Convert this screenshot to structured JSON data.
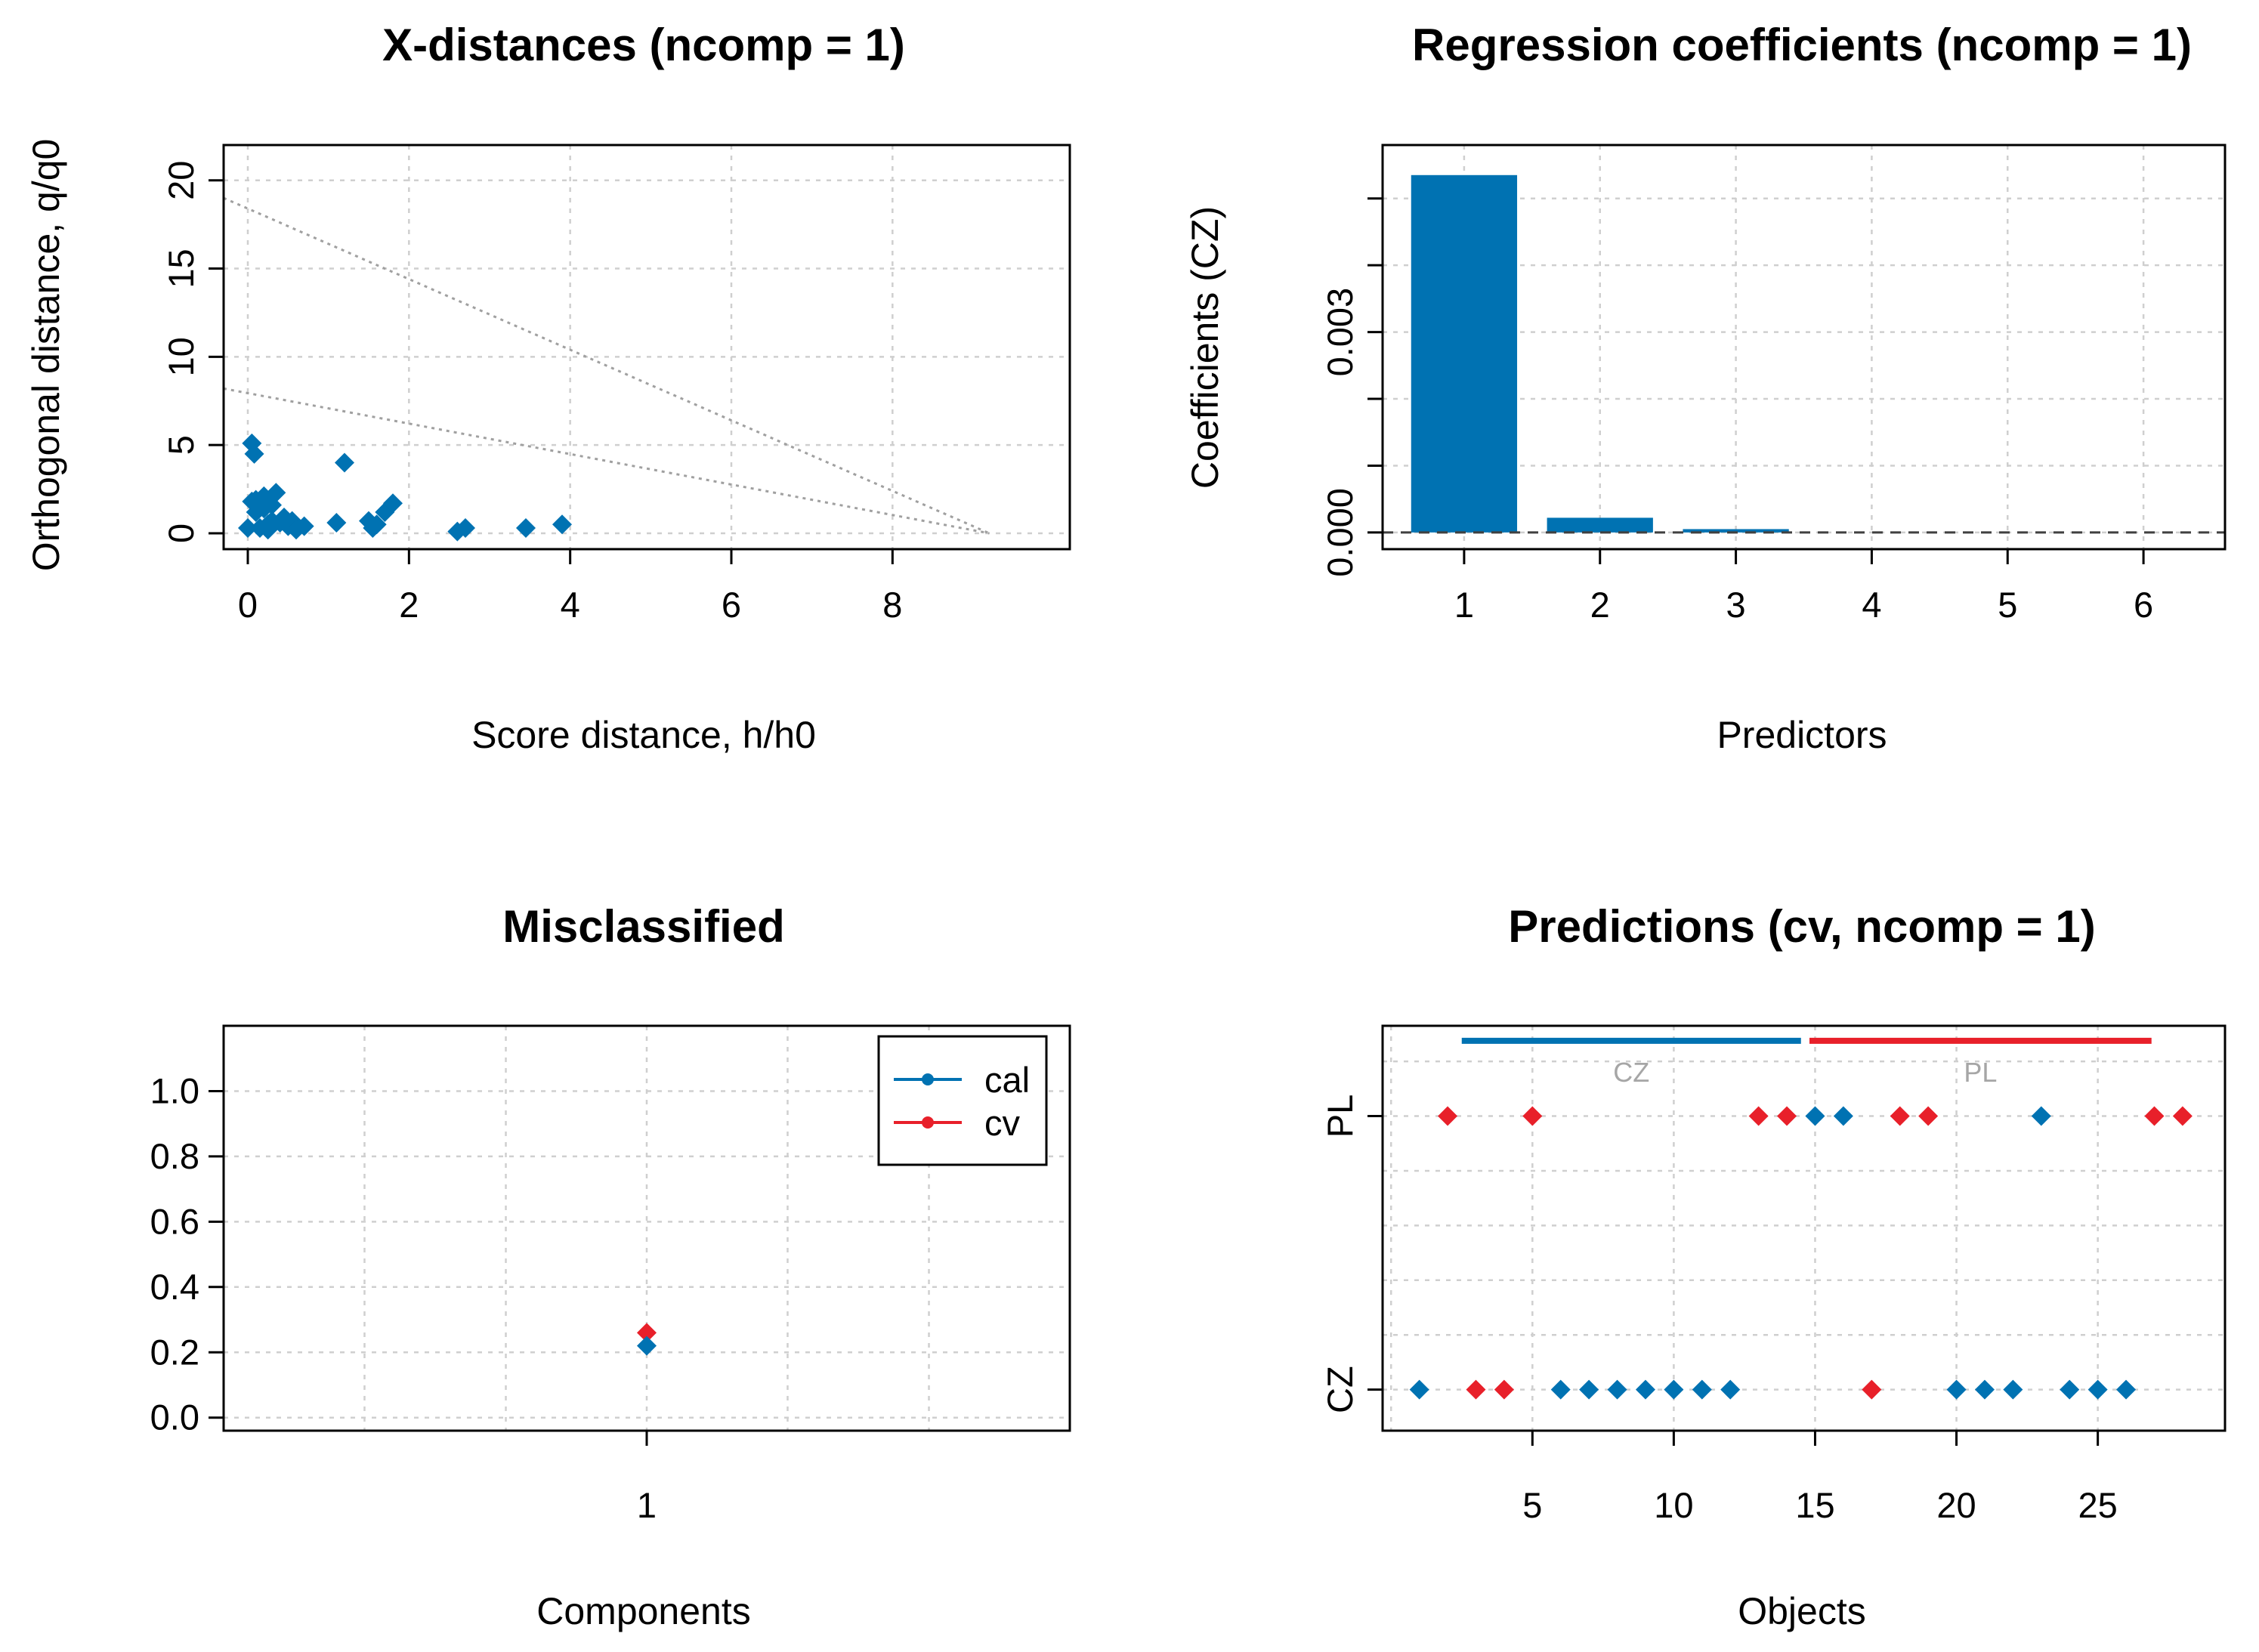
{
  "colors": {
    "cal": "#0072b2",
    "cv": "#e8202a",
    "grid": "#cfcfcf",
    "limit": "#a0a0a0"
  },
  "chart_data": [
    {
      "type": "scatter",
      "title": "X-distances (ncomp = 1)",
      "xlabel": "Score distance, h/h0",
      "ylabel": "Orthogonal distance, q/q0",
      "xlim": [
        -0.3,
        10.2
      ],
      "ylim": [
        -0.9,
        22
      ],
      "xticks": [
        0,
        2,
        4,
        6,
        8
      ],
      "yticks": [
        0,
        5,
        10,
        15,
        20
      ],
      "grid": true,
      "limit_lines": [
        {
          "x": [
            -0.3,
            9.2
          ],
          "y": [
            8.2,
            0
          ]
        },
        {
          "x": [
            -0.3,
            9.2
          ],
          "y": [
            19.0,
            0
          ]
        }
      ],
      "points": {
        "x": [
          0.05,
          0.08,
          0.1,
          0.15,
          0.2,
          0.25,
          0.3,
          0.35,
          0.4,
          0.45,
          0.5,
          0.55,
          0.6,
          0.7,
          0.0,
          0.05,
          0.1,
          0.2,
          0.25,
          1.1,
          1.2,
          1.5,
          1.55,
          1.6,
          1.7,
          1.8,
          2.6,
          2.7,
          3.45,
          3.9,
          0.3
        ],
        "y": [
          5.1,
          4.5,
          1.9,
          0.3,
          2.1,
          0.5,
          1.6,
          2.3,
          0.6,
          0.9,
          0.4,
          0.7,
          0.2,
          0.4,
          0.3,
          1.8,
          1.2,
          1.4,
          0.2,
          0.6,
          4.0,
          0.7,
          0.3,
          0.5,
          1.2,
          1.7,
          0.1,
          0.3,
          0.3,
          0.5,
          0.7
        ]
      }
    },
    {
      "type": "bar",
      "title": "Regression coefficients (ncomp = 1)",
      "xlabel": "Predictors",
      "ylabel": "Coefficients (CZ)",
      "categories": [
        "1",
        "2",
        "3",
        "4",
        "5",
        "6"
      ],
      "values": [
        0.00535,
        0.00022,
        5e-05,
        0,
        0,
        0
      ],
      "xlim": [
        0.4,
        6.6
      ],
      "ylim": [
        -0.00025,
        0.0058
      ],
      "yticks": [
        0.0,
        0.001,
        0.002,
        0.003,
        0.004,
        0.005
      ],
      "ytick_labels": [
        "0.000",
        "",
        "",
        "0.003",
        "",
        ""
      ],
      "grid": true
    },
    {
      "type": "scatter",
      "title": "Misclassified",
      "xlabel": "Components",
      "ylabel": "",
      "xlim": [
        0,
        2
      ],
      "ylim": [
        -0.04,
        1.2
      ],
      "xticks": [
        1
      ],
      "yticks": [
        0.0,
        0.2,
        0.4,
        0.6,
        0.8,
        1.0
      ],
      "ytick_labels": [
        "0.0",
        "0.2",
        "0.4",
        "0.6",
        "0.8",
        "1.0"
      ],
      "grid": true,
      "legend_position": "top-right",
      "series": [
        {
          "name": "cal",
          "x": [
            1
          ],
          "y": [
            0.22
          ]
        },
        {
          "name": "cv",
          "x": [
            1
          ],
          "y": [
            0.26
          ]
        }
      ]
    },
    {
      "type": "scatter",
      "title": "Predictions (cv, ncomp = 1)",
      "xlabel": "Objects",
      "ylabel": "",
      "xlim": [
        -0.3,
        29.5
      ],
      "ylim": [
        0.85,
        2.33
      ],
      "xticks": [
        5,
        10,
        15,
        20,
        25
      ],
      "ytick_labels": [
        "CZ",
        "PL"
      ],
      "grid": true,
      "class_bars": [
        {
          "label": "CZ",
          "x": [
            2.5,
            14.5
          ],
          "color": "cal"
        },
        {
          "label": "PL",
          "x": [
            14.8,
            26.9
          ],
          "color": "cv"
        }
      ],
      "points": [
        {
          "x": 1,
          "y": 1,
          "color": "cal"
        },
        {
          "x": 2,
          "y": 2,
          "color": "cv"
        },
        {
          "x": 3,
          "y": 1,
          "color": "cv"
        },
        {
          "x": 4,
          "y": 1,
          "color": "cv"
        },
        {
          "x": 5,
          "y": 2,
          "color": "cv"
        },
        {
          "x": 6,
          "y": 1,
          "color": "cal"
        },
        {
          "x": 7,
          "y": 1,
          "color": "cal"
        },
        {
          "x": 8,
          "y": 1,
          "color": "cal"
        },
        {
          "x": 9,
          "y": 1,
          "color": "cal"
        },
        {
          "x": 10,
          "y": 1,
          "color": "cal"
        },
        {
          "x": 11,
          "y": 1,
          "color": "cal"
        },
        {
          "x": 12,
          "y": 1,
          "color": "cal"
        },
        {
          "x": 13,
          "y": 2,
          "color": "cv"
        },
        {
          "x": 14,
          "y": 2,
          "color": "cv"
        },
        {
          "x": 15,
          "y": 2,
          "color": "cal"
        },
        {
          "x": 16,
          "y": 2,
          "color": "cal"
        },
        {
          "x": 17,
          "y": 1,
          "color": "cv"
        },
        {
          "x": 18,
          "y": 2,
          "color": "cv"
        },
        {
          "x": 19,
          "y": 2,
          "color": "cv"
        },
        {
          "x": 20,
          "y": 1,
          "color": "cal"
        },
        {
          "x": 21,
          "y": 1,
          "color": "cal"
        },
        {
          "x": 22,
          "y": 1,
          "color": "cal"
        },
        {
          "x": 23,
          "y": 2,
          "color": "cal"
        },
        {
          "x": 24,
          "y": 1,
          "color": "cal"
        },
        {
          "x": 25,
          "y": 1,
          "color": "cal"
        },
        {
          "x": 26,
          "y": 1,
          "color": "cal"
        },
        {
          "x": 27,
          "y": 2,
          "color": "cv"
        },
        {
          "x": 28,
          "y": 2,
          "color": "cv"
        }
      ]
    }
  ]
}
